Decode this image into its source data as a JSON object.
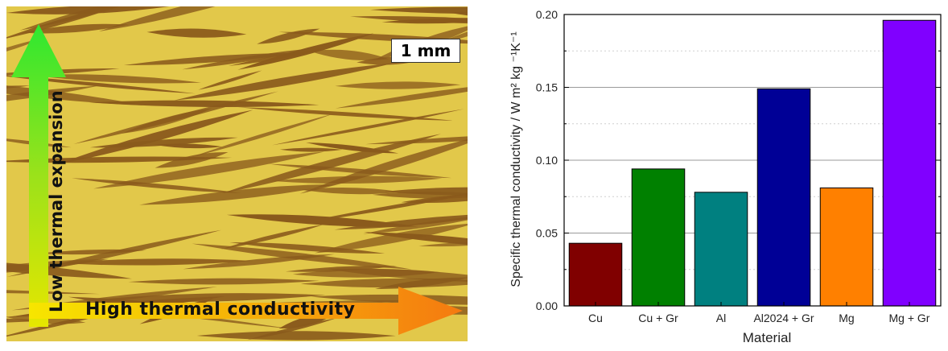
{
  "micrograph": {
    "scale_label": "1 mm",
    "vertical_arrow_label": "Low thermal expansion",
    "horizontal_arrow_label": "High thermal conductivity",
    "colors": {
      "matrix": "#e2c84a",
      "flakes": "#8a5a1c",
      "up_arrow": "#2ee830",
      "right_arrow_start": "#f7e600",
      "right_arrow_end": "#f57a10"
    }
  },
  "chart_data": {
    "type": "bar",
    "categories": [
      "Cu",
      "Cu + Gr",
      "Al",
      "Al2024 + Gr",
      "Mg",
      "Mg + Gr"
    ],
    "values": [
      0.043,
      0.094,
      0.078,
      0.149,
      0.081,
      0.196
    ],
    "colors": [
      "#800000",
      "#008000",
      "#008080",
      "#000096",
      "#ff8000",
      "#8000ff"
    ],
    "xlabel": "Material",
    "ylabel": "Specific thermal conductivity  / W m² kg ⁻¹K⁻¹",
    "ylim": [
      0,
      0.2
    ],
    "yticks": [
      "0.00",
      "0.05",
      "0.10",
      "0.15",
      "0.20"
    ],
    "grid": true
  }
}
